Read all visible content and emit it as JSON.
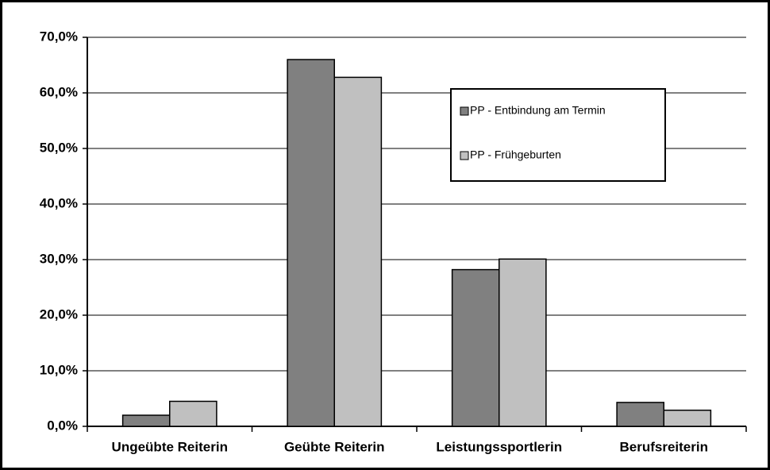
{
  "chart_data": {
    "type": "bar",
    "categories": [
      "Ungeübte Reiterin",
      "Geübte Reiterin",
      "Leistungssportlerin",
      "Berufsreiterin"
    ],
    "series": [
      {
        "name": "PP - Entbindung am Termin",
        "color": "#808080",
        "values": [
          2.0,
          66.0,
          28.2,
          4.3
        ]
      },
      {
        "name": "PP - Frühgeburten",
        "color": "#c0c0c0",
        "values": [
          4.5,
          62.8,
          30.1,
          2.9
        ]
      }
    ],
    "ylim": [
      0,
      70
    ],
    "yticks": [
      {
        "value": 0,
        "label": "0,0%"
      },
      {
        "value": 10,
        "label": "10,0%"
      },
      {
        "value": 20,
        "label": "20,0%"
      },
      {
        "value": 30,
        "label": "30,0%"
      },
      {
        "value": 40,
        "label": "40,0%"
      },
      {
        "value": 50,
        "label": "50,0%"
      },
      {
        "value": 60,
        "label": "60,0%"
      },
      {
        "value": 70,
        "label": "70,0%"
      }
    ],
    "grid": true,
    "legend": "upper right"
  }
}
